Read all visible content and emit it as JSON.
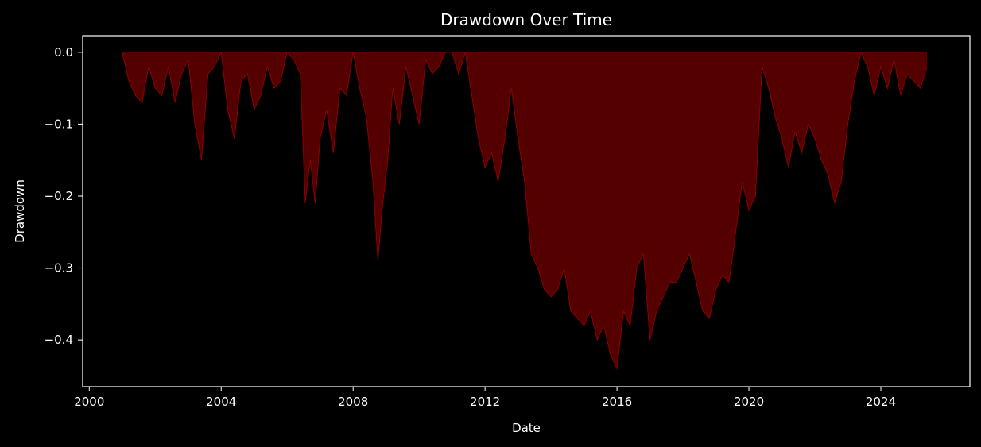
{
  "chart_data": {
    "type": "area",
    "title": "Drawdown Over Time",
    "xlabel": "Date",
    "ylabel": "Drawdown",
    "xlim": [
      1999.8,
      2026.7
    ],
    "ylim": [
      -0.465,
      0.023
    ],
    "x_ticks": [
      2000,
      2004,
      2008,
      2012,
      2016,
      2020,
      2024
    ],
    "x_tick_labels": [
      "2000",
      "2004",
      "2008",
      "2012",
      "2016",
      "2020",
      "2024"
    ],
    "y_ticks": [
      0.0,
      -0.1,
      -0.2,
      -0.3,
      -0.4
    ],
    "y_tick_labels": [
      "0.0",
      "−0.1",
      "−0.2",
      "−0.3",
      "−0.4"
    ],
    "grid": false,
    "legend": "none",
    "fill_color": "#550000",
    "line_color": "#8b0000",
    "series": [
      {
        "x": [
          2001.0,
          2001.2,
          2001.4,
          2001.6,
          2001.8,
          2002.0,
          2002.2,
          2002.4,
          2002.6,
          2002.8,
          2003.0,
          2003.2,
          2003.4,
          2003.6,
          2003.8,
          2004.0,
          2004.2,
          2004.4,
          2004.6,
          2004.8,
          2005.0,
          2005.2,
          2005.4,
          2005.6,
          2005.8,
          2006.0,
          2006.2,
          2006.4,
          2006.55,
          2006.7,
          2006.85,
          2007.0,
          2007.2,
          2007.4,
          2007.6,
          2007.8,
          2008.0,
          2008.2,
          2008.4,
          2008.6,
          2008.75,
          2008.9,
          2009.05,
          2009.2,
          2009.4,
          2009.6,
          2009.8,
          2010.0,
          2010.2,
          2010.4,
          2010.6,
          2010.8,
          2011.0,
          2011.2,
          2011.4,
          2011.6,
          2011.8,
          2012.0,
          2012.2,
          2012.4,
          2012.6,
          2012.8,
          2013.0,
          2013.2,
          2013.4,
          2013.6,
          2013.8,
          2014.0,
          2014.2,
          2014.4,
          2014.6,
          2014.8,
          2015.0,
          2015.2,
          2015.4,
          2015.6,
          2015.8,
          2016.0,
          2016.2,
          2016.4,
          2016.6,
          2016.8,
          2017.0,
          2017.2,
          2017.4,
          2017.6,
          2017.8,
          2018.0,
          2018.2,
          2018.4,
          2018.6,
          2018.8,
          2019.0,
          2019.2,
          2019.4,
          2019.6,
          2019.8,
          2020.0,
          2020.2,
          2020.4,
          2020.6,
          2020.8,
          2021.0,
          2021.2,
          2021.4,
          2021.6,
          2021.8,
          2022.0,
          2022.2,
          2022.4,
          2022.6,
          2022.8,
          2023.0,
          2023.2,
          2023.4,
          2023.6,
          2023.8,
          2024.0,
          2024.2,
          2024.4,
          2024.6,
          2024.8,
          2025.0,
          2025.2,
          2025.4
        ],
        "values": [
          0.0,
          -0.04,
          -0.06,
          -0.07,
          -0.02,
          -0.05,
          -0.06,
          -0.02,
          -0.07,
          -0.03,
          -0.01,
          -0.1,
          -0.15,
          -0.03,
          -0.02,
          0.0,
          -0.08,
          -0.12,
          -0.04,
          -0.03,
          -0.08,
          -0.06,
          -0.02,
          -0.05,
          -0.04,
          0.0,
          -0.01,
          -0.03,
          -0.21,
          -0.15,
          -0.21,
          -0.12,
          -0.08,
          -0.14,
          -0.05,
          -0.06,
          0.0,
          -0.05,
          -0.09,
          -0.18,
          -0.29,
          -0.21,
          -0.15,
          -0.05,
          -0.1,
          -0.02,
          -0.06,
          -0.1,
          -0.01,
          -0.03,
          -0.02,
          0.0,
          0.0,
          -0.03,
          0.0,
          -0.06,
          -0.12,
          -0.16,
          -0.14,
          -0.18,
          -0.12,
          -0.05,
          -0.12,
          -0.18,
          -0.28,
          -0.3,
          -0.33,
          -0.34,
          -0.33,
          -0.3,
          -0.36,
          -0.37,
          -0.38,
          -0.36,
          -0.4,
          -0.38,
          -0.42,
          -0.44,
          -0.36,
          -0.38,
          -0.3,
          -0.28,
          -0.4,
          -0.36,
          -0.34,
          -0.32,
          -0.32,
          -0.3,
          -0.28,
          -0.32,
          -0.36,
          -0.37,
          -0.33,
          -0.31,
          -0.32,
          -0.25,
          -0.18,
          -0.22,
          -0.2,
          -0.02,
          -0.05,
          -0.09,
          -0.12,
          -0.16,
          -0.11,
          -0.14,
          -0.1,
          -0.12,
          -0.15,
          -0.17,
          -0.21,
          -0.18,
          -0.1,
          -0.04,
          0.0,
          -0.02,
          -0.06,
          -0.02,
          -0.05,
          -0.01,
          -0.06,
          -0.03,
          -0.04,
          -0.05,
          -0.02
        ]
      }
    ]
  }
}
